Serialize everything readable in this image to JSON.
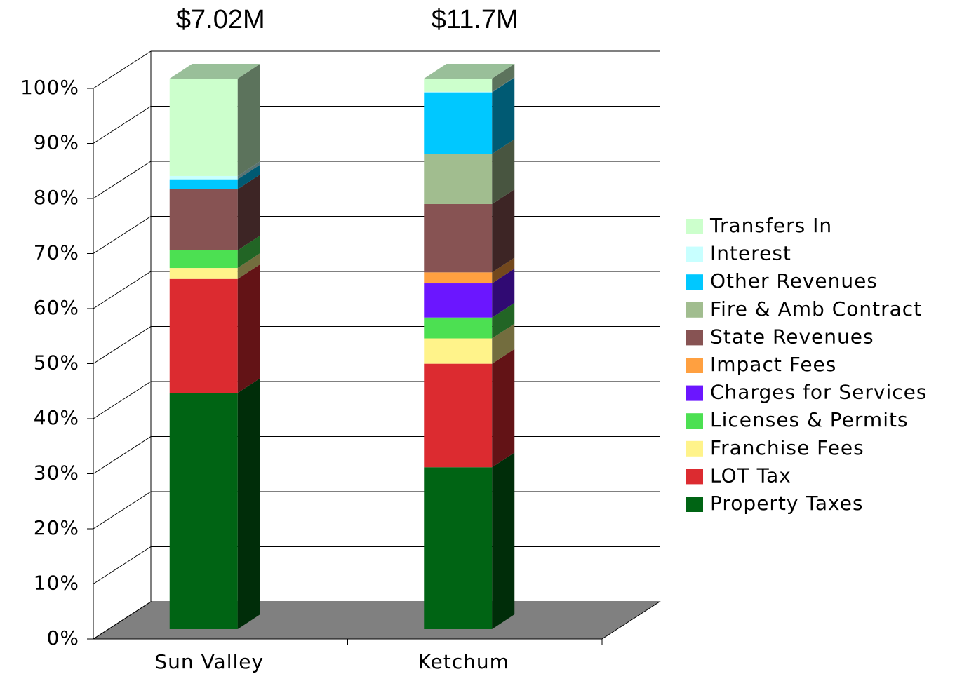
{
  "chart_data": {
    "type": "stacked-bar-3d",
    "annotations": [
      "$7.02M",
      "$11.7M"
    ],
    "categories": [
      "Sun Valley",
      "Ketchum"
    ],
    "series": [
      {
        "name": "Property Taxes",
        "color": "#006414",
        "values": [
          42.9,
          29.4
        ]
      },
      {
        "name": "LOT Tax",
        "color": "#dc2b30",
        "values": [
          20.7,
          18.8
        ]
      },
      {
        "name": "Franchise Fees",
        "color": "#fff38a",
        "values": [
          2.0,
          4.6
        ]
      },
      {
        "name": "Licenses & Permits",
        "color": "#4ce052",
        "values": [
          3.2,
          3.8
        ]
      },
      {
        "name": "Charges for Services",
        "color": "#6b16ff",
        "values": [
          0,
          6.2
        ]
      },
      {
        "name": "Impact Fees",
        "color": "#ffa040",
        "values": [
          0,
          2.0
        ]
      },
      {
        "name": "State Revenues",
        "color": "#875353",
        "values": [
          11.1,
          12.4
        ]
      },
      {
        "name": "Fire & Amb Contract",
        "color": "#a1bd8f",
        "values": [
          0,
          9.1
        ]
      },
      {
        "name": "Other Revenues",
        "color": "#00c8ff",
        "values": [
          1.8,
          11.2
        ]
      },
      {
        "name": "Interest",
        "color": "#c8ffff",
        "values": [
          0.6,
          0.1
        ]
      },
      {
        "name": "Transfers In",
        "color": "#ccffcc",
        "values": [
          17.7,
          2.4
        ]
      }
    ],
    "ylim": [
      0,
      100
    ],
    "yticks": [
      {
        "value": 0,
        "label": "0%"
      },
      {
        "value": 10,
        "label": "10%"
      },
      {
        "value": 20,
        "label": "20%"
      },
      {
        "value": 30,
        "label": "30%"
      },
      {
        "value": 40,
        "label": "40%"
      },
      {
        "value": 50,
        "label": "50%"
      },
      {
        "value": 60,
        "label": "60%"
      },
      {
        "value": 70,
        "label": "70%"
      },
      {
        "value": 80,
        "label": "80%"
      },
      {
        "value": 90,
        "label": "90%"
      },
      {
        "value": 100,
        "label": "100%"
      }
    ],
    "grid": true,
    "legend": "right"
  }
}
